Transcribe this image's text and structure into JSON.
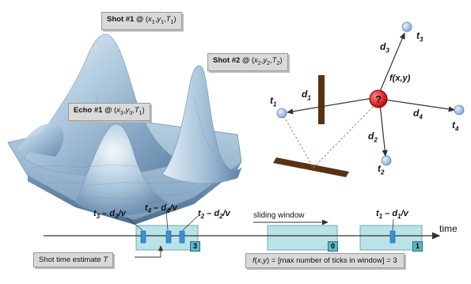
{
  "callouts": {
    "shot1": {
      "bold": "Shot #1 @",
      "vars": "(x1,y1,T1)",
      "html_vars": [
        "x",
        "1",
        "y",
        "1",
        "T",
        "1"
      ]
    },
    "shot2": {
      "bold": "Shot #2 @",
      "vars": "(x2,y2,T2)",
      "html_vars": [
        "x",
        "2",
        "y",
        "2",
        "T",
        "2"
      ]
    },
    "echo1": {
      "bold": "Echo #1 @",
      "vars": "(x3,y3,T1)",
      "html_vars": [
        "x",
        "3",
        "y",
        "3",
        "T",
        "1"
      ]
    }
  },
  "network": {
    "center_label": "f(x,y)",
    "center_symbol": "?",
    "sensors": [
      "t1",
      "t2",
      "t3",
      "t4"
    ],
    "distances": [
      "d1",
      "d2",
      "d3",
      "d4"
    ]
  },
  "timeline": {
    "axis_label": "time",
    "window_caption": "sliding window",
    "labels": {
      "a": "t3 – d3/v",
      "b": "t4 – d4/v",
      "c": "t2 – d2/v",
      "d": "t1 – d1/v"
    },
    "window_counts": [
      "3",
      "0",
      "1"
    ],
    "shot_estimate": "Shot time estimate T",
    "formula": "f(x,y) = [max number of ticks in window] = 3"
  },
  "colors": {
    "surface_top": "#dbe9f3",
    "surface_mid": "#8fb3cf",
    "surface_dark": "#5a7fa3",
    "sensor_fill": "#a8c6e8",
    "center_fill": "#e02020",
    "barrier": "#5a3213",
    "window_fill": "#b9e3e7",
    "tick_fill": "#3b8fd9",
    "count_fill": "#5fb6c1"
  }
}
